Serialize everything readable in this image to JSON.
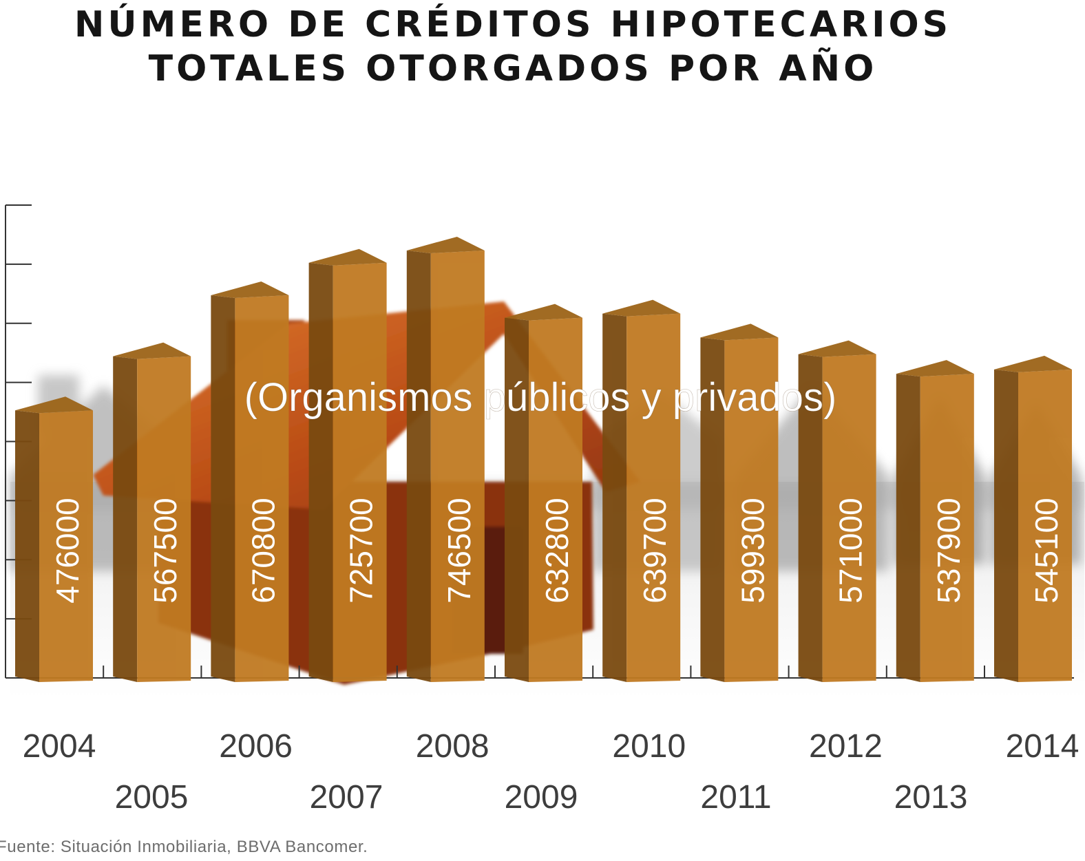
{
  "title_line1": "NÚMERO DE CRÉDITOS HIPOTECARIOS",
  "title_line2": "TOTALES OTORGADOS POR AÑO",
  "subtitle": "(Organismos públicos y privados)",
  "source": "Fuente: Situación Inmobiliaria, BBVA Bancomer.",
  "colors": {
    "bar_front": "#c07a22",
    "bar_side": "#7a4a10",
    "bar_top": "#9c6418",
    "house_roof": "#c0551a",
    "house_wall": "#8a3210",
    "axis": "#333333",
    "year_label": "#3d3d3d",
    "value_label": "#ffffff"
  },
  "chart_data": {
    "type": "bar",
    "categories": [
      "2004",
      "2005",
      "2006",
      "2007",
      "2008",
      "2009",
      "2010",
      "2011",
      "2012",
      "2013",
      "2014"
    ],
    "values": [
      476000,
      567500,
      670800,
      725700,
      746500,
      632800,
      639700,
      599300,
      571000,
      537900,
      545100
    ],
    "value_labels": [
      "476000",
      "567500",
      "670800",
      "725700",
      "746500",
      "632800",
      "639700",
      "599300",
      "571000",
      "537900",
      "545100"
    ],
    "ylim": [
      0,
      800000
    ],
    "y_ticks": [
      0,
      100000,
      200000,
      300000,
      400000,
      500000,
      600000,
      700000,
      800000
    ],
    "y_tick_labels_shown": false,
    "grid": false,
    "legend": "none",
    "xlabel": "",
    "ylabel": ""
  }
}
